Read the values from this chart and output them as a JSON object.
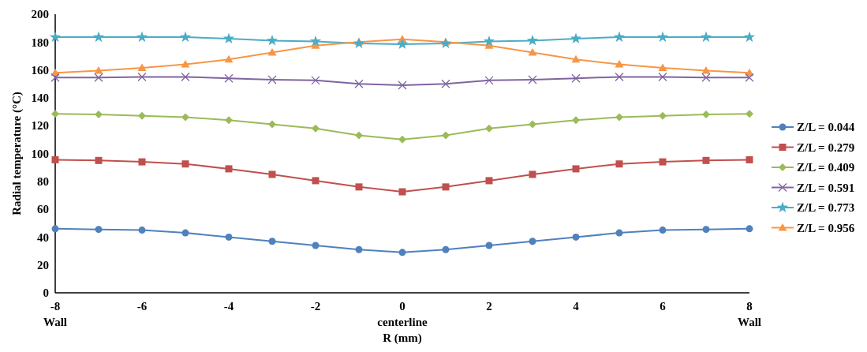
{
  "chart_data": {
    "type": "line",
    "xlabel": "R (mm)",
    "ylabel": "Radial temperature (°C)",
    "x": [
      -8,
      -7,
      -6,
      -5,
      -4,
      -3,
      -2,
      -1,
      0,
      1,
      2,
      3,
      4,
      5,
      6,
      7,
      8
    ],
    "xlim": [
      -8,
      8
    ],
    "xticks": [
      {
        "value": -8,
        "label": "-8\nWall"
      },
      -6,
      -4,
      -2,
      {
        "value": 0,
        "label": "0\ncenterline"
      },
      2,
      4,
      6,
      {
        "value": 8,
        "label": "8\nWall"
      }
    ],
    "ylim": [
      0,
      200
    ],
    "yticks": [
      0,
      20,
      40,
      60,
      80,
      100,
      120,
      140,
      160,
      180,
      200
    ],
    "grid": false,
    "legend": "right",
    "line_style": "solid",
    "series": [
      {
        "name": "Z/L = 0.044",
        "color": "#4f81bd",
        "marker": "circle",
        "values": [
          46,
          45.5,
          45,
          43,
          40,
          37,
          34,
          31,
          29,
          31,
          34,
          37,
          40,
          43,
          45,
          45.5,
          46
        ]
      },
      {
        "name": "Z/L = 0.279",
        "color": "#c0504d",
        "marker": "square",
        "values": [
          95.5,
          95,
          94,
          92.5,
          89,
          85,
          80.5,
          76,
          72.5,
          76,
          80.5,
          85,
          89,
          92.5,
          94,
          95,
          95.5
        ]
      },
      {
        "name": "Z/L = 0.409",
        "color": "#9bbb59",
        "marker": "diamond",
        "values": [
          128.5,
          128,
          127,
          126,
          124,
          121,
          118,
          113,
          110,
          113,
          118,
          121,
          124,
          126,
          127,
          128,
          128.5
        ]
      },
      {
        "name": "Z/L = 0.591",
        "color": "#8064a2",
        "marker": "cross",
        "values": [
          154.5,
          154.5,
          155,
          155,
          154,
          153,
          152.5,
          150,
          149,
          150,
          152.5,
          153,
          154,
          155,
          155,
          154.5,
          154.5
        ]
      },
      {
        "name": "Z/L = 0.773",
        "color": "#4bacc6",
        "marker": "star",
        "values": [
          183.5,
          183.5,
          183.5,
          183.5,
          182.5,
          181,
          180.5,
          179,
          178.5,
          179,
          180.5,
          181,
          182.5,
          183.5,
          183.5,
          183.5,
          183.5
        ]
      },
      {
        "name": "Z/L = 0.956",
        "color": "#f79646",
        "marker": "triangle",
        "values": [
          158,
          159.5,
          161.5,
          164,
          167.5,
          172.5,
          177.5,
          180,
          182,
          180,
          177.5,
          172.5,
          167.5,
          164,
          161.5,
          159.5,
          158
        ]
      }
    ]
  }
}
